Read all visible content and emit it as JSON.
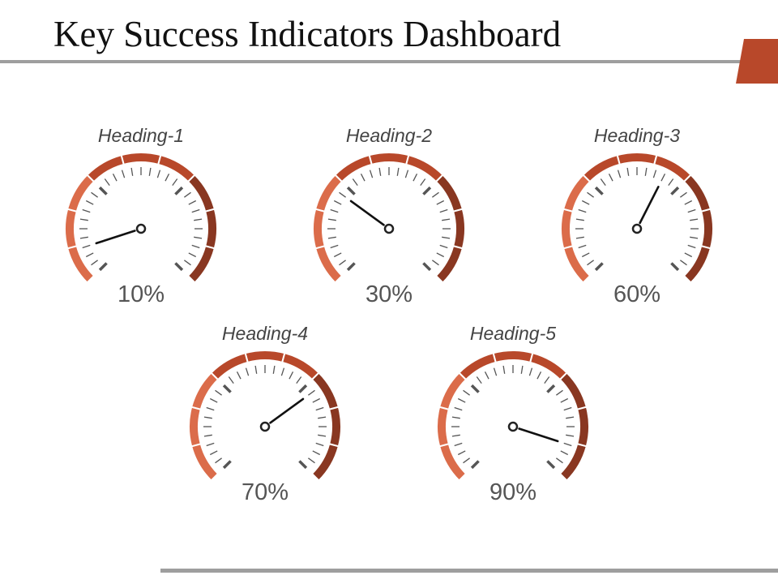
{
  "title": "Key Success Indicators Dashboard",
  "colors": {
    "arc_light": "#db6c4a",
    "arc_mid": "#b8482a",
    "arc_dark": "#893721",
    "tick": "#555555",
    "needle": "#111111",
    "rule": "#9e9e9e",
    "accent": "#b8482a"
  },
  "gauges": [
    {
      "heading": "Heading-1",
      "value_label": "10%",
      "value": 10
    },
    {
      "heading": "Heading-2",
      "value_label": "30%",
      "value": 30
    },
    {
      "heading": "Heading-3",
      "value_label": "60%",
      "value": 60
    },
    {
      "heading": "Heading-4",
      "value_label": "70%",
      "value": 70
    },
    {
      "heading": "Heading-5",
      "value_label": "90%",
      "value": 90
    }
  ]
}
